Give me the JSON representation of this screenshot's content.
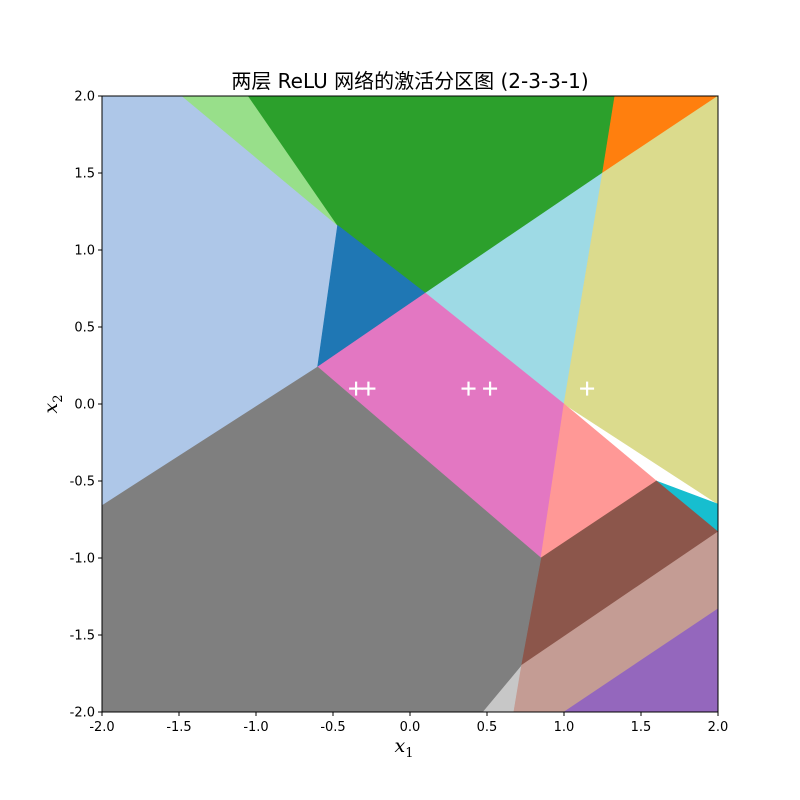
{
  "chart_data": {
    "type": "heatmap",
    "title": "两层 ReLU 网络的激活分区图 (2-3-3-1)",
    "xlabel": "x",
    "xlabel_sub": "1",
    "ylabel": "x",
    "ylabel_sub": "2",
    "xlim": [
      -2.0,
      2.0
    ],
    "ylim": [
      -2.0,
      2.0
    ],
    "xticks": [
      -2.0,
      -1.5,
      -1.0,
      -0.5,
      0.0,
      0.5,
      1.0,
      1.5,
      2.0
    ],
    "yticks": [
      -2.0,
      -1.5,
      -1.0,
      -0.5,
      0.0,
      0.5,
      1.0,
      1.5,
      2.0
    ],
    "xtick_labels": [
      "-2.0",
      "-1.5",
      "-1.0",
      "-0.5",
      "0.0",
      "0.5",
      "1.0",
      "1.5",
      "2.0"
    ],
    "ytick_labels": [
      "-2.0",
      "-1.5",
      "-1.0",
      "-0.5",
      "0.0",
      "0.5",
      "1.0",
      "1.5",
      "2.0"
    ],
    "grid": false,
    "regions": [
      {
        "color": "#aec7e8",
        "points": [
          [
            -2.0,
            2.0
          ],
          [
            -1.48,
            2.0
          ],
          [
            -0.47,
            1.16
          ],
          [
            -0.6,
            0.24
          ],
          [
            -2.0,
            -0.66
          ]
        ]
      },
      {
        "color": "#98df8a",
        "points": [
          [
            -1.48,
            2.0
          ],
          [
            -1.05,
            2.0
          ],
          [
            -0.47,
            1.16
          ]
        ]
      },
      {
        "color": "#2ca02c",
        "points": [
          [
            -1.05,
            2.0
          ],
          [
            1.33,
            2.0
          ],
          [
            1.25,
            1.5
          ],
          [
            0.1,
            0.72
          ],
          [
            -0.47,
            1.16
          ]
        ]
      },
      {
        "color": "#ff7f0e",
        "points": [
          [
            1.33,
            2.0
          ],
          [
            2.0,
            2.0
          ],
          [
            1.25,
            1.5
          ]
        ]
      },
      {
        "color": "#1f77b4",
        "points": [
          [
            -0.47,
            1.16
          ],
          [
            0.1,
            0.72
          ],
          [
            -0.6,
            0.24
          ]
        ]
      },
      {
        "color": "#9edae5",
        "points": [
          [
            0.1,
            0.72
          ],
          [
            1.25,
            1.5
          ],
          [
            1.0,
            0.0
          ]
        ]
      },
      {
        "color": "#dbdb8d",
        "points": [
          [
            1.25,
            1.5
          ],
          [
            2.0,
            2.0
          ],
          [
            2.0,
            -0.65
          ],
          [
            1.0,
            0.0
          ]
        ]
      },
      {
        "color": "#e377c2",
        "points": [
          [
            -0.6,
            0.24
          ],
          [
            0.1,
            0.72
          ],
          [
            1.0,
            0.0
          ],
          [
            0.85,
            -1.0
          ]
        ]
      },
      {
        "color": "#ff9896",
        "points": [
          [
            1.0,
            0.0
          ],
          [
            1.6,
            -0.5
          ],
          [
            0.85,
            -1.0
          ]
        ]
      },
      {
        "color": "#17becf",
        "points": [
          [
            1.6,
            -0.5
          ],
          [
            2.0,
            -0.65
          ],
          [
            2.0,
            -0.83
          ]
        ]
      },
      {
        "color": "#8c564b",
        "points": [
          [
            0.85,
            -1.0
          ],
          [
            1.6,
            -0.5
          ],
          [
            2.0,
            -0.83
          ],
          [
            0.72,
            -1.7
          ]
        ]
      },
      {
        "color": "#c49c94",
        "points": [
          [
            0.72,
            -1.7
          ],
          [
            2.0,
            -0.83
          ],
          [
            2.0,
            -1.33
          ],
          [
            1.0,
            -2.0
          ],
          [
            0.67,
            -2.0
          ]
        ]
      },
      {
        "color": "#9467bd",
        "points": [
          [
            1.0,
            -2.0
          ],
          [
            2.0,
            -1.33
          ],
          [
            2.0,
            -2.0
          ]
        ]
      },
      {
        "color": "#c7c7c7",
        "points": [
          [
            0.47,
            -2.0
          ],
          [
            0.67,
            -2.0
          ],
          [
            0.72,
            -1.7
          ]
        ]
      },
      {
        "color": "#7f7f7f",
        "points": [
          [
            -2.0,
            -0.66
          ],
          [
            -0.6,
            0.24
          ],
          [
            0.85,
            -1.0
          ],
          [
            0.72,
            -1.7
          ],
          [
            0.47,
            -2.0
          ],
          [
            -2.0,
            -2.0
          ]
        ]
      }
    ],
    "markers": {
      "marker": "+",
      "color": "#ffffff",
      "points": [
        [
          -0.35,
          0.1
        ],
        [
          -0.27,
          0.1
        ],
        [
          0.38,
          0.1
        ],
        [
          0.52,
          0.1
        ],
        [
          1.15,
          0.1
        ]
      ]
    }
  }
}
